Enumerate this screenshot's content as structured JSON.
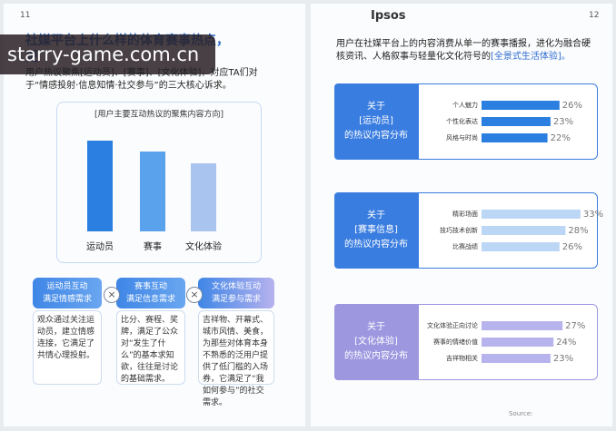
{
  "watermark": "starry-game.com.cn",
  "left_page": {
    "page_number": "11",
    "title": "社媒平台上什么样的体育赛事热点，",
    "title_line2": "更",
    "intro": "用户热议聚焦[运动员]、[赛事]、[文化体验]，对应TA们对于“情感投射·信息知情·社交参与”的三大核心诉求。",
    "chart": {
      "type": "bar",
      "title": "[用户主要互动热议的聚焦内容方向]",
      "categories": [
        "运动员",
        "赛事",
        "文化体验"
      ],
      "values": [
        100,
        88,
        75
      ],
      "colors": [
        "#2a7fe0",
        "#5aa2ec",
        "#a9c4ee"
      ]
    },
    "cards": [
      {
        "heading": "运动员互动",
        "subheading": "满足情感需求",
        "body": "观众通过关注运动员，建立情感连接，它满足了共情心理投射。"
      },
      {
        "heading": "赛事互动",
        "subheading": "满足信息需求",
        "body": "比分、赛程、奖牌，满足了公众对“发生了什么”的基本求知欲，往往是讨论的基础需求。"
      },
      {
        "heading": "文化体验互动",
        "subheading": "满足参与需求",
        "body": "吉祥物、开幕式、城市风情、美食，为那些对体育本身不熟悉的泛用户提供了低门槛的入场券，它满足了“我如何参与”的社交需求。"
      }
    ]
  },
  "right_page": {
    "page_number": "12",
    "logo": "Ipsos",
    "intro": "用户在社媒平台上的内容消费从单一的赛事播报，进化为融合硬核资讯、人格叙事与轻量化文化符号的",
    "highlight": "[全景式生活体验]。",
    "panels": [
      {
        "label_lines": [
          "关于",
          "[运动员]",
          "的热议内容分布"
        ],
        "color": "#3a7de0",
        "chart": {
          "type": "bar",
          "categories": [
            "个人魅力",
            "个性化表达",
            "风格与时尚"
          ],
          "values": [
            26,
            23,
            22
          ],
          "value_labels": [
            "26%",
            "23%",
            "22%"
          ],
          "color": "#2a7fe0"
        }
      },
      {
        "label_lines": [
          "关于",
          "[赛事信息]",
          "的热议内容分布"
        ],
        "color": "#3a7de0",
        "chart": {
          "type": "bar",
          "categories": [
            "精彩场面",
            "技巧技术创新",
            "比赛战绩"
          ],
          "values": [
            33,
            28,
            26
          ],
          "value_labels": [
            "33%",
            "28%",
            "26%"
          ],
          "color": "#bcd6f5"
        }
      },
      {
        "label_lines": [
          "关于",
          "[文化体验]",
          "的热议内容分布"
        ],
        "color": "#9d97e0",
        "chart": {
          "type": "bar",
          "categories": [
            "文化体验正向讨论",
            "赛事的情绪价值",
            "吉祥物相关"
          ],
          "values": [
            27,
            24,
            23
          ],
          "value_labels": [
            "27%",
            "24%",
            "23%"
          ],
          "color": "#b7b3ec"
        }
      }
    ],
    "source": "Source:"
  }
}
